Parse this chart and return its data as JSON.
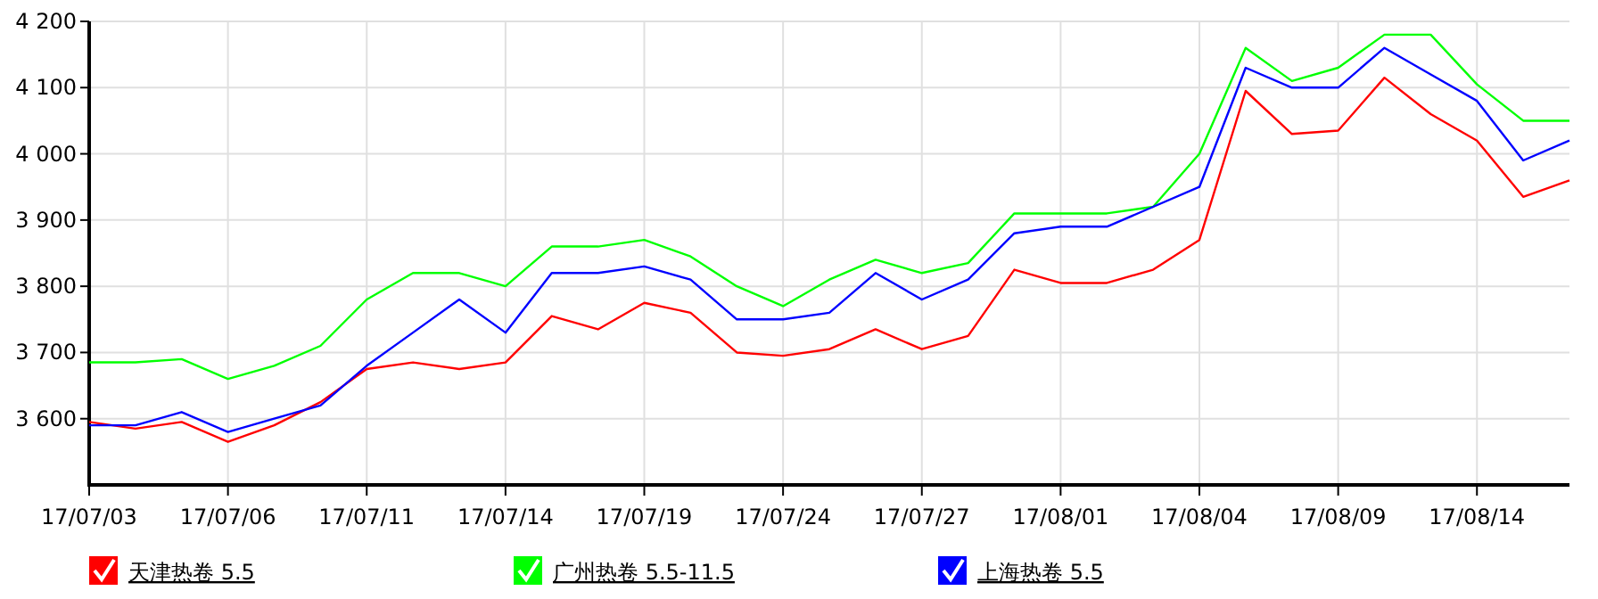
{
  "chart_data": {
    "type": "line",
    "categories": [
      "17/07/03",
      null,
      null,
      "17/07/06",
      null,
      null,
      "17/07/11",
      null,
      null,
      "17/07/14",
      null,
      null,
      "17/07/19",
      null,
      null,
      "17/07/24",
      null,
      null,
      "17/07/27",
      null,
      null,
      "17/08/01",
      null,
      null,
      "17/08/04",
      null,
      null,
      "17/08/09",
      null,
      null,
      "17/08/14",
      null,
      null
    ],
    "ylim": [
      3500,
      4200
    ],
    "yticks": [
      {
        "value": 3600,
        "label": "3 600"
      },
      {
        "value": 3700,
        "label": "3 700"
      },
      {
        "value": 3800,
        "label": "3 800"
      },
      {
        "value": 3900,
        "label": "3 900"
      },
      {
        "value": 4000,
        "label": "4 000"
      },
      {
        "value": 4100,
        "label": "4 100"
      },
      {
        "value": 4200,
        "label": "4 200"
      }
    ],
    "grid": true,
    "legend": "bottom",
    "marker": "none",
    "line_style": "solid",
    "series": [
      {
        "name": "天津热卷 5.5",
        "color": "#ff0000",
        "values": [
          3595,
          3585,
          3595,
          3565,
          3590,
          3625,
          3675,
          3685,
          3675,
          3685,
          3755,
          3735,
          3775,
          3760,
          3700,
          3695,
          3705,
          3735,
          3705,
          3725,
          3825,
          3805,
          3805,
          3825,
          3870,
          4095,
          4030,
          4035,
          4115,
          4060,
          4020,
          3935,
          3960
        ]
      },
      {
        "name": "广州热卷 5.5-11.5",
        "color": "#00ff00",
        "values": [
          3685,
          3685,
          3690,
          3660,
          3680,
          3710,
          3780,
          3820,
          3820,
          3800,
          3860,
          3860,
          3870,
          3845,
          3800,
          3770,
          3810,
          3840,
          3820,
          3835,
          3910,
          3910,
          3910,
          3920,
          4000,
          4160,
          4110,
          4130,
          4180,
          4180,
          4105,
          4050,
          4050
        ]
      },
      {
        "name": "上海热卷 5.5",
        "color": "#0000ff",
        "values": [
          3590,
          3590,
          3610,
          3580,
          3600,
          3620,
          3680,
          3730,
          3780,
          3730,
          3820,
          3820,
          3830,
          3810,
          3750,
          3750,
          3760,
          3820,
          3780,
          3810,
          3880,
          3890,
          3890,
          3920,
          3950,
          4130,
          4100,
          4100,
          4160,
          4120,
          4080,
          3990,
          4020
        ]
      }
    ]
  }
}
